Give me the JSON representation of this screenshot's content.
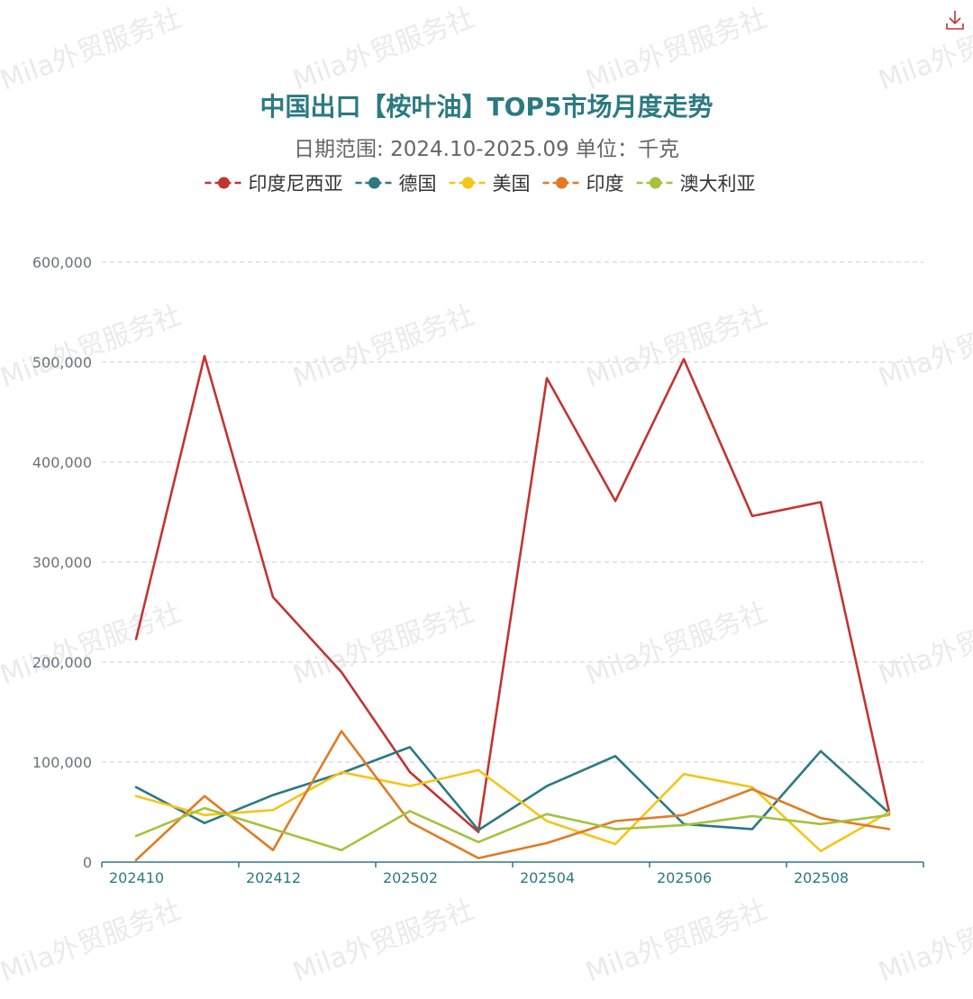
{
  "watermark_text": "Mila外贸服务社",
  "download_icon": "download-icon",
  "colors": {
    "title": "#2b7a82",
    "axis": "#2b7a82",
    "grid": "#cccccc",
    "download": "#c23531"
  },
  "chart_data": {
    "type": "line",
    "title": "中国出口【桉叶油】TOP5市场月度走势",
    "subtitle": "日期范围: 2024.10-2025.09    单位：千克",
    "categories": [
      "202410",
      "202411",
      "202412",
      "202501",
      "202502",
      "202503",
      "202504",
      "202505",
      "202506",
      "202507",
      "202508",
      "202509"
    ],
    "x_tick_labels": [
      "202410",
      "202412",
      "202502",
      "202504",
      "202506",
      "202508"
    ],
    "y_tick_labels": [
      "0",
      "100,000",
      "200,000",
      "300,000",
      "400,000",
      "500,000",
      "600,000"
    ],
    "ylim": [
      0,
      600000
    ],
    "grid": true,
    "legend_position": "top",
    "series": [
      {
        "name": "印度尼西亚",
        "color": "#c23531",
        "values": [
          223000,
          506000,
          265000,
          190000,
          90000,
          30000,
          484000,
          361000,
          503000,
          346000,
          360000,
          50000
        ]
      },
      {
        "name": "德国",
        "color": "#2b7a82",
        "values": [
          75000,
          39000,
          67000,
          89000,
          115000,
          32000,
          76000,
          106000,
          38000,
          33000,
          111000,
          49000
        ]
      },
      {
        "name": "美国",
        "color": "#f5c518",
        "values": [
          66000,
          47000,
          52000,
          90000,
          76000,
          92000,
          41000,
          18000,
          88000,
          75000,
          11000,
          50000
        ]
      },
      {
        "name": "印度",
        "color": "#e07b24",
        "values": [
          2000,
          66000,
          12000,
          131000,
          40000,
          4000,
          19000,
          41000,
          47000,
          73000,
          44000,
          33000
        ]
      },
      {
        "name": "澳大利亚",
        "color": "#a5c23a",
        "values": [
          26000,
          54000,
          33000,
          12000,
          51000,
          20000,
          48000,
          33000,
          37000,
          46000,
          38000,
          47000
        ]
      }
    ]
  }
}
